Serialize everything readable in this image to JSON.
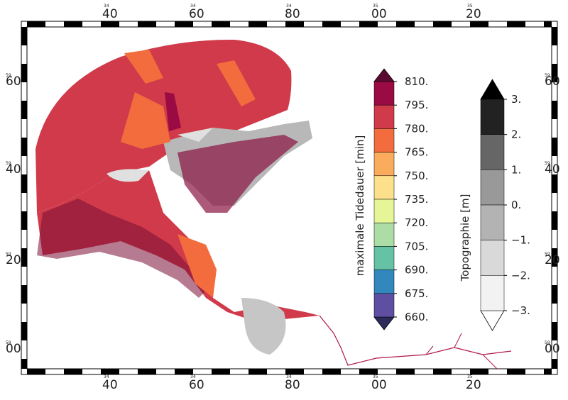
{
  "frame": {
    "x_labels": [
      {
        "prefix": "34",
        "label": "40"
      },
      {
        "prefix": "34",
        "label": "60"
      },
      {
        "prefix": "34",
        "label": "80"
      },
      {
        "prefix": "35",
        "label": "00"
      },
      {
        "prefix": "35",
        "label": "20"
      }
    ],
    "y_labels": [
      {
        "prefix": "59",
        "label": "60"
      },
      {
        "prefix": "59",
        "label": "40"
      },
      {
        "prefix": "59",
        "label": "20"
      },
      {
        "prefix": "59",
        "label": "00"
      }
    ]
  },
  "colorbars": [
    {
      "title": "maximale Tidedauer [min]",
      "ticks": [
        {
          "value": 810,
          "label": "810."
        },
        {
          "value": 795,
          "label": "795."
        },
        {
          "value": 780,
          "label": "780."
        },
        {
          "value": 765,
          "label": "765."
        },
        {
          "value": 750,
          "label": "750."
        },
        {
          "value": 735,
          "label": "735."
        },
        {
          "value": 720,
          "label": "720."
        },
        {
          "value": 705,
          "label": "705."
        },
        {
          "value": 690,
          "label": "690."
        },
        {
          "value": 675,
          "label": "675."
        },
        {
          "value": 660,
          "label": "660."
        }
      ],
      "colors": [
        "#5a0a2e",
        "#9a0a43",
        "#d03a4a",
        "#f26c3e",
        "#fbab5c",
        "#fde08b",
        "#e6f598",
        "#abdda4",
        "#66c2a5",
        "#3288bd",
        "#5e4fa2",
        "#2d2a5c"
      ]
    },
    {
      "title": "Topographie [m]",
      "ticks": [
        {
          "value": 3,
          "label": "3."
        },
        {
          "value": 2,
          "label": "2."
        },
        {
          "value": 1,
          "label": "1."
        },
        {
          "value": 0,
          "label": "0."
        },
        {
          "value": -1,
          "label": "−1."
        },
        {
          "value": -2,
          "label": "−2."
        },
        {
          "value": -3,
          "label": "−3."
        }
      ],
      "colors": [
        "#000000",
        "#222222",
        "#666666",
        "#999999",
        "#b3b3b3",
        "#d9d9d9",
        "#f2f2f2",
        "#ffffff"
      ]
    }
  ]
}
